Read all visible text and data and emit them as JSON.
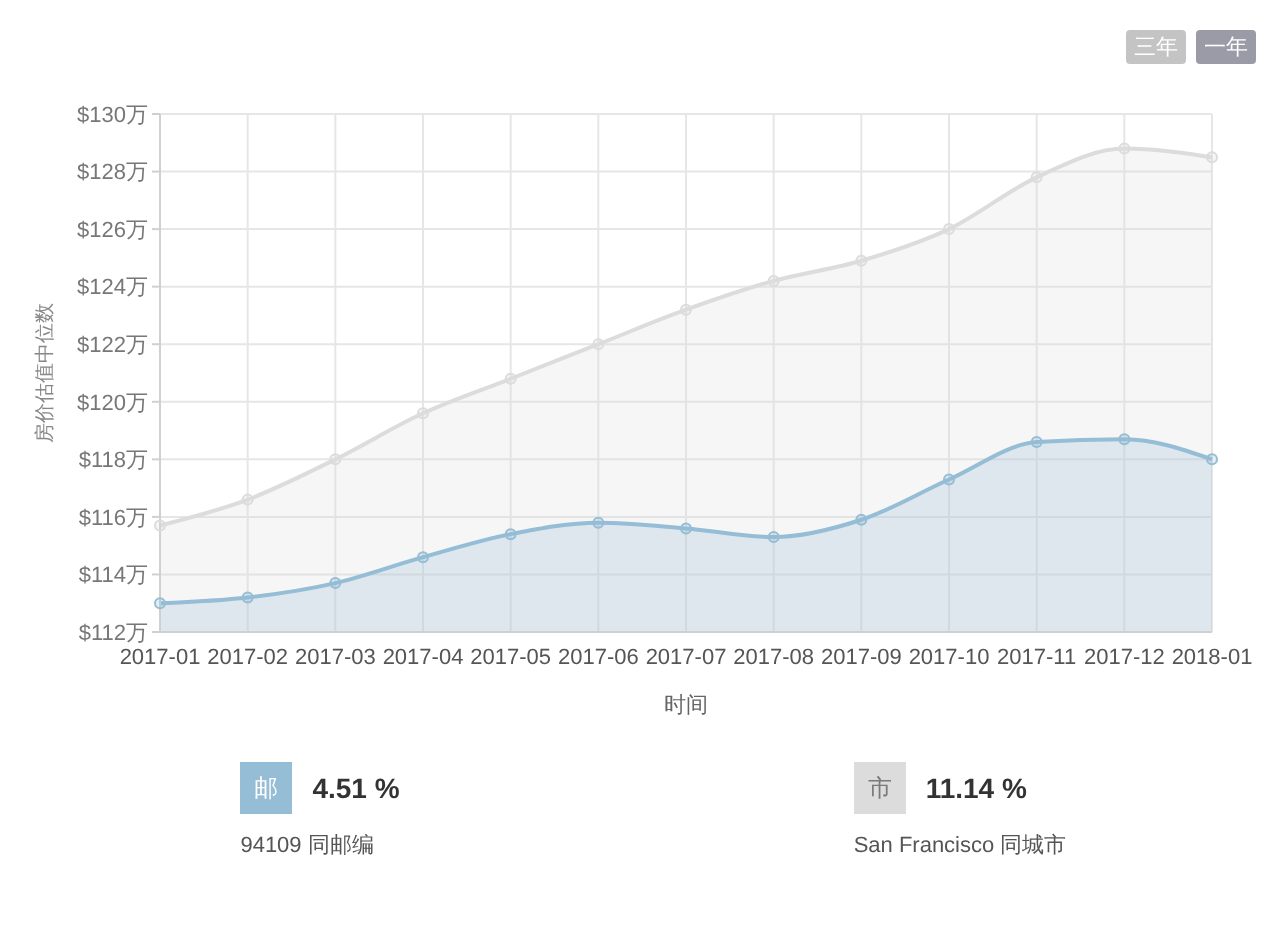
{
  "chart_data": {
    "type": "area",
    "xlabel": "时间",
    "ylabel": "房价估值中位数",
    "categories": [
      "2017-01",
      "2017-02",
      "2017-03",
      "2017-04",
      "2017-05",
      "2017-06",
      "2017-07",
      "2017-08",
      "2017-09",
      "2017-10",
      "2017-11",
      "2017-12",
      "2018-01"
    ],
    "series": [
      {
        "name": "94109 同邮编",
        "color": "#95bdd5",
        "values": [
          113.0,
          113.2,
          113.7,
          114.6,
          115.4,
          115.8,
          115.6,
          115.3,
          115.9,
          117.3,
          118.6,
          118.7,
          118.0
        ]
      },
      {
        "name": "San Francisco 同城市",
        "color": "#dcdcdc",
        "values": [
          115.7,
          116.6,
          118.0,
          119.6,
          120.8,
          122.0,
          123.2,
          124.2,
          124.9,
          126.0,
          127.8,
          128.8,
          128.5
        ]
      }
    ],
    "ylim": [
      112,
      130
    ],
    "yticks": [
      {
        "value": 112,
        "label": "$112万"
      },
      {
        "value": 114,
        "label": "$114万"
      },
      {
        "value": 116,
        "label": "$116万"
      },
      {
        "value": 118,
        "label": "$118万"
      },
      {
        "value": 120,
        "label": "$120万"
      },
      {
        "value": 122,
        "label": "$122万"
      },
      {
        "value": 124,
        "label": "$124万"
      },
      {
        "value": 126,
        "label": "$126万"
      },
      {
        "value": 128,
        "label": "$128万"
      },
      {
        "value": 130,
        "label": "$130万"
      }
    ],
    "grid": true,
    "marker": "circle",
    "legend": "bottom",
    "annotations": [
      "三年",
      "一年",
      "邮",
      "4.51 %",
      "市",
      "11.14 %"
    ]
  }
}
